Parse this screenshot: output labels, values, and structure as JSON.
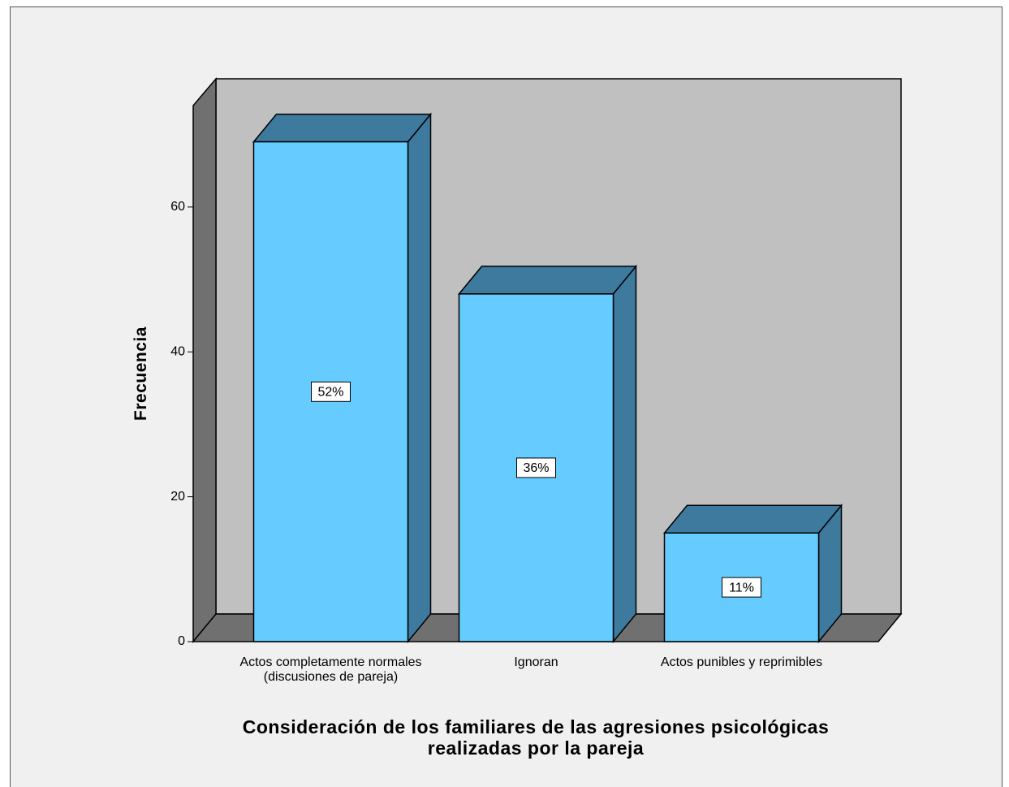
{
  "chart_data": {
    "type": "bar3d",
    "xlabel": "Consideración de los familiares de las agresiones psicológicas realizadas por la pareja",
    "ylabel": "Frecuencia",
    "categories": [
      "Actos completamente normales (discusiones de pareja)",
      "Ignoran",
      "Actos punibles y reprimibles"
    ],
    "values": [
      69,
      48,
      15
    ],
    "percent": [
      52,
      36,
      11
    ],
    "percent_labels": [
      "52%",
      "36%",
      "11%"
    ],
    "color": "#66ccff",
    "ylim": [
      0,
      74
    ],
    "yticks": [
      0,
      20,
      40,
      60
    ]
  }
}
